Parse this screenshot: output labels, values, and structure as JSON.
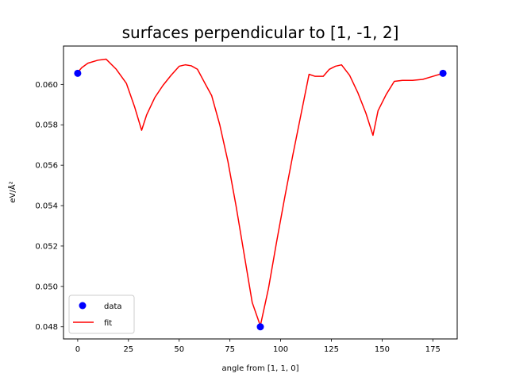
{
  "chart_data": {
    "type": "line",
    "title": "surfaces perpendicular to [1, -1, 2]",
    "xlabel": "angle from [1, 1, 0]",
    "ylabel": "eV/Å²",
    "xlim": [
      -7,
      187
    ],
    "ylim": [
      0.0474,
      0.0619
    ],
    "xticks": [
      0,
      25,
      50,
      75,
      100,
      125,
      150,
      175
    ],
    "yticks": [
      0.048,
      0.05,
      0.052,
      0.054,
      0.056,
      0.058,
      0.06
    ],
    "legend": {
      "position": "lower-left",
      "entries": [
        "data",
        "fit"
      ]
    },
    "colors": {
      "data": "#0000ff",
      "fit": "#ff0000"
    },
    "series": [
      {
        "name": "data",
        "kind": "scatter",
        "x": [
          0,
          90,
          180
        ],
        "y": [
          0.06055,
          0.048,
          0.06055
        ]
      },
      {
        "name": "fit",
        "kind": "line",
        "x": [
          0,
          2,
          5,
          10,
          14,
          19,
          24,
          28,
          31.5,
          34,
          38,
          42,
          46,
          50,
          53,
          56,
          59,
          63,
          66,
          70,
          74,
          78,
          82,
          86,
          90,
          94,
          98,
          102,
          106,
          110,
          114,
          117,
          121,
          124,
          127,
          130,
          134,
          138,
          142,
          145.5,
          148,
          152,
          156,
          160,
          165,
          170,
          175,
          180
        ],
        "y": [
          0.0606,
          0.06083,
          0.06105,
          0.0612,
          0.06125,
          0.06075,
          0.06005,
          0.0589,
          0.05773,
          0.0585,
          0.05935,
          0.05995,
          0.06045,
          0.0609,
          0.06097,
          0.06092,
          0.06075,
          0.06,
          0.05945,
          0.058,
          0.0562,
          0.054,
          0.0516,
          0.0492,
          0.04805,
          0.0499,
          0.0522,
          0.0544,
          0.0565,
          0.0585,
          0.0605,
          0.0604,
          0.0604,
          0.06075,
          0.0609,
          0.06097,
          0.06045,
          0.0596,
          0.05858,
          0.05748,
          0.0587,
          0.0595,
          0.06015,
          0.0602,
          0.0602,
          0.06025,
          0.0604,
          0.06055
        ]
      }
    ]
  }
}
